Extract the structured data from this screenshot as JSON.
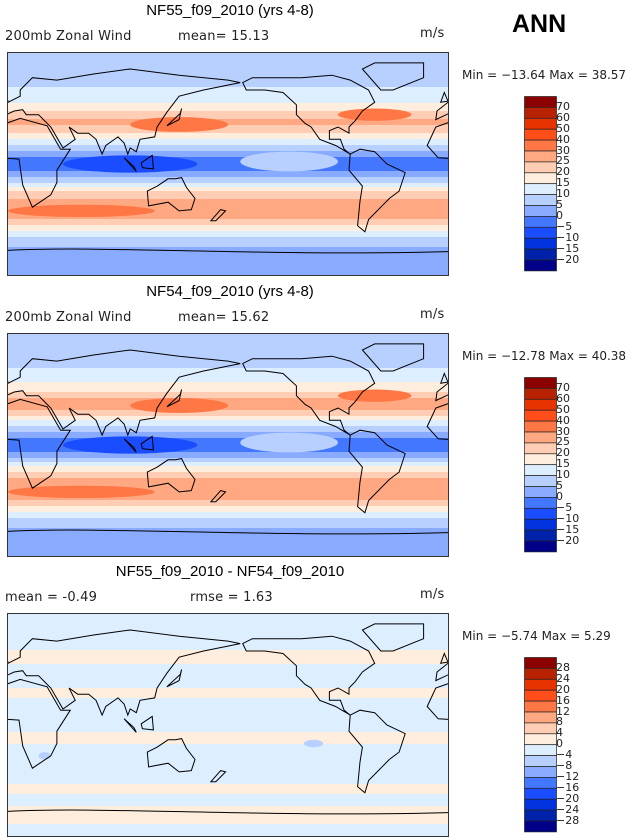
{
  "season": "ANN",
  "colors": [
    "#000088",
    "#0022aa",
    "#0033dd",
    "#1a4dff",
    "#4477ff",
    "#88aaff",
    "#b8d0ff",
    "#ddeeff",
    "#ffeedd",
    "#ffccb4",
    "#ffa882",
    "#ff7744",
    "#ff4e1a",
    "#e63300",
    "#b82200",
    "#8b0000"
  ],
  "chart_data": [
    {
      "type": "heatmap",
      "title": "NF55_f09_2010 (yrs 4-8)",
      "variable": "200mb Zonal Wind",
      "mean_label": "mean=  15.13",
      "units": "m/s",
      "minmax": "Min = −13.64 Max =  38.57",
      "levels": [
        -20,
        -15,
        -10,
        -5,
        0,
        5,
        10,
        15,
        20,
        25,
        30,
        40,
        50,
        60,
        70
      ],
      "level_labels": [
        "70",
        "60",
        "50",
        "40",
        "30",
        "25",
        "20",
        "15",
        "10",
        "5",
        "0",
        "−5",
        "−10",
        "−15",
        "−20"
      ],
      "zonal_profile": {
        "lat": [
          90,
          70,
          55,
          45,
          35,
          28,
          20,
          12,
          5,
          0,
          -5,
          -12,
          -20,
          -30,
          -40,
          -48,
          -55,
          -62,
          -70,
          -90
        ],
        "u": [
          8,
          8,
          12,
          18,
          26,
          24,
          15,
          6,
          -1,
          -3,
          -1,
          6,
          18,
          27,
          29,
          22,
          14,
          8,
          3,
          3
        ]
      },
      "features": [
        {
          "lon": 140,
          "lat": 32,
          "u": 35,
          "dlon": 40,
          "dlat": 6
        },
        {
          "lon": 300,
          "lat": 40,
          "u": 32,
          "dlon": 30,
          "dlat": 5
        },
        {
          "lon": 100,
          "lat": 0,
          "u": -10,
          "dlon": 55,
          "dlat": 7
        },
        {
          "lon": 230,
          "lat": 2,
          "u": 8,
          "dlon": 40,
          "dlat": 8
        },
        {
          "lon": 60,
          "lat": -38,
          "u": 34,
          "dlon": 60,
          "dlat": 5
        }
      ]
    },
    {
      "type": "heatmap",
      "title": "NF54_f09_2010 (yrs 4-8)",
      "variable": "200mb Zonal Wind",
      "mean_label": "mean=  15.62",
      "units": "m/s",
      "minmax": "Min = −12.78 Max =  40.38",
      "levels": [
        -20,
        -15,
        -10,
        -5,
        0,
        5,
        10,
        15,
        20,
        25,
        30,
        40,
        50,
        60,
        70
      ],
      "level_labels": [
        "70",
        "60",
        "50",
        "40",
        "30",
        "25",
        "20",
        "15",
        "10",
        "5",
        "0",
        "−5",
        "−10",
        "−15",
        "−20"
      ],
      "zonal_profile": {
        "lat": [
          90,
          70,
          55,
          45,
          35,
          28,
          20,
          12,
          5,
          0,
          -5,
          -12,
          -20,
          -30,
          -40,
          -48,
          -55,
          -62,
          -70,
          -90
        ],
        "u": [
          8,
          8,
          12,
          19,
          27,
          25,
          15,
          6,
          -1,
          -3,
          -1,
          6,
          19,
          28,
          30,
          22,
          14,
          8,
          3,
          3
        ]
      },
      "features": [
        {
          "lon": 140,
          "lat": 32,
          "u": 36,
          "dlon": 40,
          "dlat": 6
        },
        {
          "lon": 300,
          "lat": 40,
          "u": 32,
          "dlon": 30,
          "dlat": 5
        },
        {
          "lon": 100,
          "lat": 0,
          "u": -10,
          "dlon": 55,
          "dlat": 7
        },
        {
          "lon": 230,
          "lat": 2,
          "u": 8,
          "dlon": 40,
          "dlat": 8
        },
        {
          "lon": 60,
          "lat": -38,
          "u": 35,
          "dlon": 60,
          "dlat": 5
        }
      ]
    },
    {
      "type": "heatmap",
      "title": "NF55_f09_2010 - NF54_f09_2010",
      "variable": "mean =  -0.49",
      "mean_label": "rmse =   1.63",
      "units": "m/s",
      "minmax": "Min =  −5.74 Max =   5.29",
      "levels": [
        -28,
        -24,
        -20,
        -16,
        -12,
        -8,
        -4,
        0,
        4,
        8,
        12,
        16,
        20,
        24,
        28
      ],
      "level_labels": [
        "28",
        "24",
        "20",
        "16",
        "12",
        "8",
        "4",
        "0",
        "−4",
        "−8",
        "−12",
        "−16",
        "−20",
        "−24",
        "−28"
      ],
      "zonal_profile": {
        "lat": [
          90,
          65,
          55,
          45,
          35,
          25,
          18,
          10,
          0,
          -12,
          -20,
          -30,
          -45,
          -52,
          -60,
          -72,
          -90
        ],
        "u": [
          -1,
          -1,
          1,
          -1,
          -1,
          1,
          -1,
          -1,
          -1,
          1,
          -1,
          -1,
          -1,
          1,
          -1,
          1,
          -1
        ]
      },
      "features": [
        {
          "lon": 250,
          "lat": -15,
          "u": -5,
          "dlon": 8,
          "dlat": 3
        },
        {
          "lon": 30,
          "lat": -25,
          "u": -5,
          "dlon": 5,
          "dlat": 3
        }
      ]
    }
  ]
}
